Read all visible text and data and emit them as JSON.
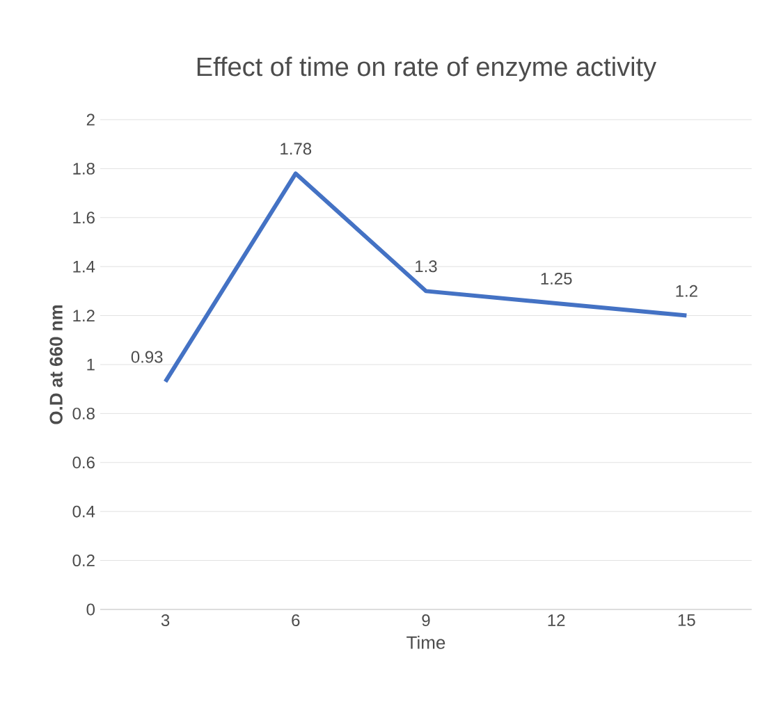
{
  "chart_data": {
    "type": "line",
    "title": "Effect of time on rate of enzyme activity",
    "xlabel": "Time",
    "ylabel": "O.D at 660 nm",
    "categories": [
      "3",
      "6",
      "9",
      "12",
      "15"
    ],
    "values": [
      0.93,
      1.78,
      1.3,
      1.25,
      1.2
    ],
    "color": "#4472c4",
    "ylim": [
      0,
      2
    ],
    "yticks": [
      0,
      0.2,
      0.4,
      0.6,
      0.8,
      1,
      1.2,
      1.4,
      1.6,
      1.8,
      2
    ],
    "grid": "y",
    "data_labels": true,
    "marker": "none",
    "line_style": "solid"
  }
}
